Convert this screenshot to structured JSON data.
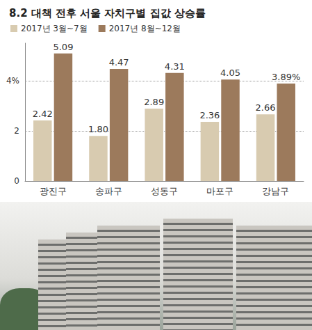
{
  "chart_data": {
    "type": "bar",
    "title": "8.2 대책 전후 서울 자치구별 집값 상승률",
    "categories": [
      "광진구",
      "송파구",
      "성동구",
      "마포구",
      "강남구"
    ],
    "series": [
      {
        "name": "2017년 3월~7월",
        "color": "#d8cbb0",
        "values": [
          2.42,
          1.8,
          2.89,
          2.36,
          2.66
        ],
        "value_labels": [
          "2.42",
          "1.80",
          "2.89",
          "2.36",
          "2.66"
        ]
      },
      {
        "name": "2017년 8월~12월",
        "color": "#9c7a5c",
        "values": [
          5.09,
          4.47,
          4.31,
          4.05,
          3.89
        ],
        "value_labels": [
          "5.09",
          "4.47",
          "4.31",
          "4.05",
          "3.89%"
        ]
      }
    ],
    "ylim": [
      0,
      5.5
    ],
    "yticks": [
      0,
      2,
      {
        "value": 4,
        "label": "4%"
      }
    ],
    "grid": true,
    "legend": "top-left",
    "data_labels": true
  }
}
